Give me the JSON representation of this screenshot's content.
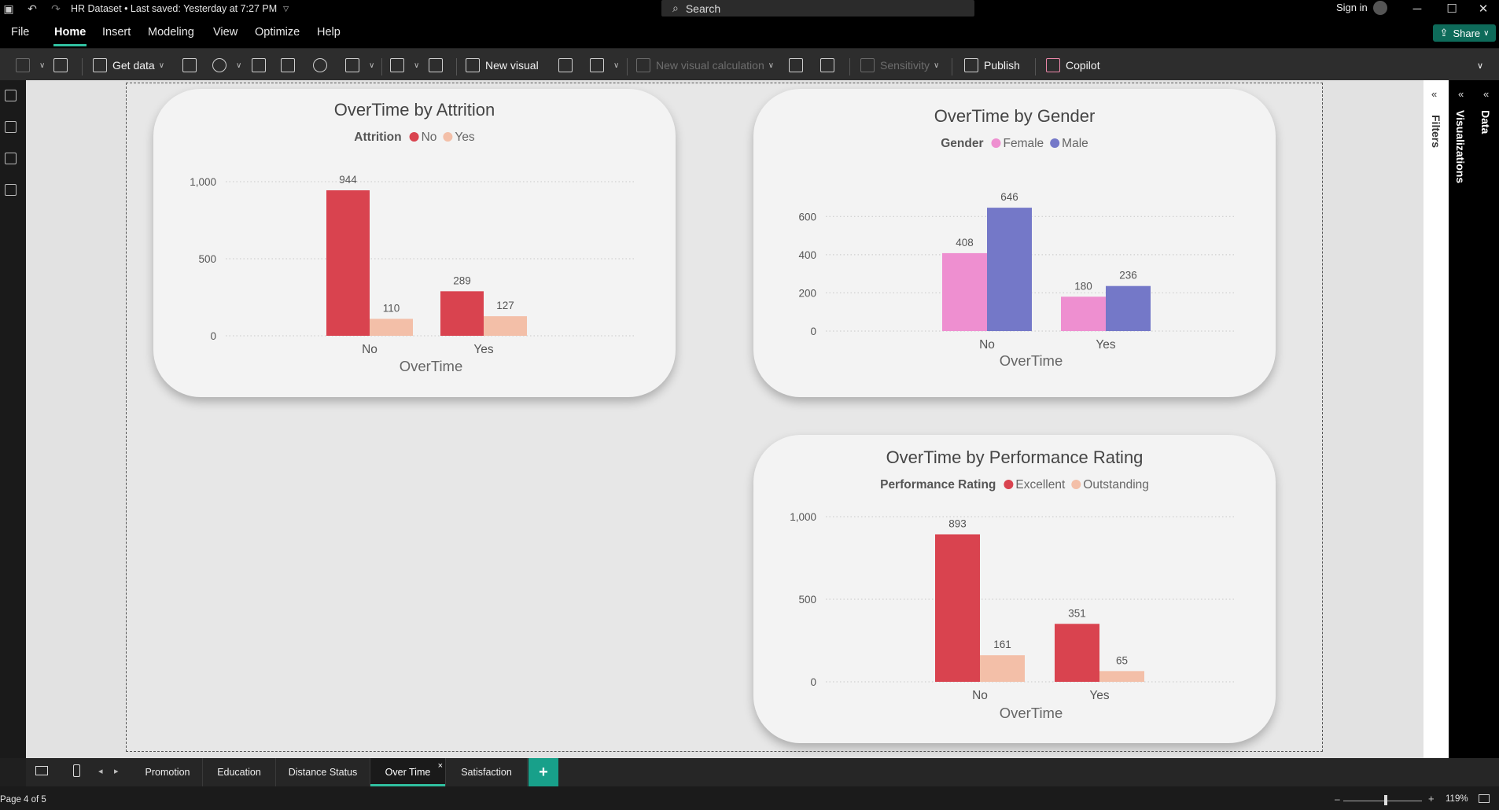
{
  "titlebar": {
    "doc_title": "HR Dataset • Last saved: Yesterday at 7:27 PM",
    "search_placeholder": "Search",
    "sign_in": "Sign in"
  },
  "menu": {
    "items": [
      "File",
      "Home",
      "Insert",
      "Modeling",
      "View",
      "Optimize",
      "Help"
    ],
    "active": "Home",
    "share": "Share"
  },
  "ribbon": {
    "get_data": "Get data",
    "new_visual": "New visual",
    "new_visual_calculation": "New visual calculation",
    "sensitivity": "Sensitivity",
    "publish": "Publish",
    "copilot": "Copilot"
  },
  "right_panes": {
    "filters": "Filters",
    "visualizations": "Visualizations",
    "data": "Data"
  },
  "tabs": {
    "items": [
      "Promotion",
      "Education",
      "Distance Status",
      "Over Time",
      "Satisfaction"
    ],
    "active": "Over Time",
    "add": "+"
  },
  "status": {
    "page_info": "Page 4 of 5",
    "zoom": "119%"
  },
  "colors": {
    "red": "#d9434f",
    "peach": "#f3bfa8",
    "pink": "#ee8fd0",
    "blue": "#7478c8",
    "accent": "#30c0a0"
  },
  "chart_data": [
    {
      "type": "bar",
      "title": "OverTime by Attrition",
      "legend_title": "Attrition",
      "xlabel": "OverTime",
      "categories": [
        "No",
        "Yes"
      ],
      "series": [
        {
          "name": "No",
          "color": "#d9434f",
          "values": [
            944,
            289
          ]
        },
        {
          "name": "Yes",
          "color": "#f3bfa8",
          "values": [
            110,
            127
          ]
        }
      ],
      "yticks": [
        0,
        500,
        1000
      ],
      "ytick_labels": [
        "0",
        "500",
        "1,000"
      ],
      "ylim": [
        0,
        1000
      ]
    },
    {
      "type": "bar",
      "title": "OverTime by Gender",
      "legend_title": "Gender",
      "xlabel": "OverTime",
      "categories": [
        "No",
        "Yes"
      ],
      "series": [
        {
          "name": "Female",
          "color": "#ee8fd0",
          "values": [
            408,
            180
          ]
        },
        {
          "name": "Male",
          "color": "#7478c8",
          "values": [
            646,
            236
          ]
        }
      ],
      "yticks": [
        0,
        200,
        400,
        600
      ],
      "ytick_labels": [
        "0",
        "200",
        "400",
        "600"
      ],
      "ylim": [
        0,
        700
      ]
    },
    {
      "type": "bar",
      "title": "OverTime by Performance Rating",
      "legend_title": "Performance Rating",
      "xlabel": "OverTime",
      "categories": [
        "No",
        "Yes"
      ],
      "series": [
        {
          "name": "Excellent",
          "color": "#d9434f",
          "values": [
            893,
            351
          ]
        },
        {
          "name": "Outstanding",
          "color": "#f3bfa8",
          "values": [
            161,
            65
          ]
        }
      ],
      "yticks": [
        0,
        500,
        1000
      ],
      "ytick_labels": [
        "0",
        "500",
        "1,000"
      ],
      "ylim": [
        0,
        1000
      ]
    }
  ]
}
